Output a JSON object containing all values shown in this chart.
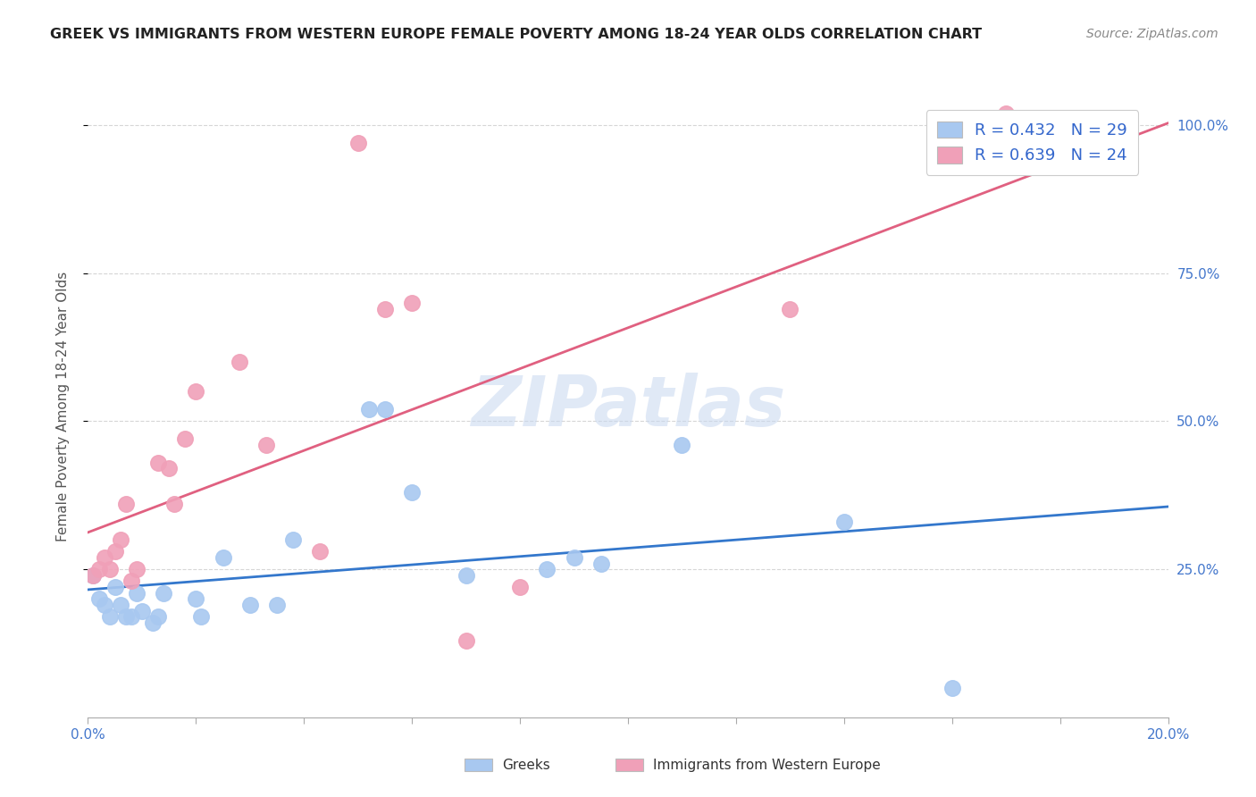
{
  "title": "GREEK VS IMMIGRANTS FROM WESTERN EUROPE FEMALE POVERTY AMONG 18-24 YEAR OLDS CORRELATION CHART",
  "source": "Source: ZipAtlas.com",
  "ylabel": "Female Poverty Among 18-24 Year Olds",
  "xlim": [
    0.0,
    0.2
  ],
  "ylim": [
    0.0,
    1.05
  ],
  "background_color": "#ffffff",
  "watermark": "ZIPatlas",
  "grid_color": "#cccccc",
  "series": [
    {
      "name": "Greeks",
      "R": 0.432,
      "N": 29,
      "color": "#a8c8f0",
      "line_color": "#3377cc",
      "points_x": [
        0.001,
        0.002,
        0.003,
        0.004,
        0.005,
        0.006,
        0.007,
        0.008,
        0.009,
        0.01,
        0.012,
        0.013,
        0.014,
        0.02,
        0.021,
        0.025,
        0.03,
        0.035,
        0.038,
        0.052,
        0.055,
        0.06,
        0.07,
        0.085,
        0.09,
        0.095,
        0.11,
        0.14,
        0.16
      ],
      "points_y": [
        0.24,
        0.2,
        0.19,
        0.17,
        0.22,
        0.19,
        0.17,
        0.17,
        0.21,
        0.18,
        0.16,
        0.17,
        0.21,
        0.2,
        0.17,
        0.27,
        0.19,
        0.19,
        0.3,
        0.52,
        0.52,
        0.38,
        0.24,
        0.25,
        0.27,
        0.26,
        0.46,
        0.33,
        0.05
      ]
    },
    {
      "name": "Immigrants from Western Europe",
      "R": 0.639,
      "N": 24,
      "color": "#f0a0b8",
      "line_color": "#e06080",
      "points_x": [
        0.001,
        0.002,
        0.003,
        0.004,
        0.005,
        0.006,
        0.007,
        0.008,
        0.009,
        0.013,
        0.015,
        0.016,
        0.018,
        0.02,
        0.028,
        0.033,
        0.043,
        0.05,
        0.055,
        0.06,
        0.07,
        0.08,
        0.13,
        0.17
      ],
      "points_y": [
        0.24,
        0.25,
        0.27,
        0.25,
        0.28,
        0.3,
        0.36,
        0.23,
        0.25,
        0.43,
        0.42,
        0.36,
        0.47,
        0.55,
        0.6,
        0.46,
        0.28,
        0.97,
        0.69,
        0.7,
        0.13,
        0.22,
        0.69,
        1.02
      ]
    }
  ]
}
